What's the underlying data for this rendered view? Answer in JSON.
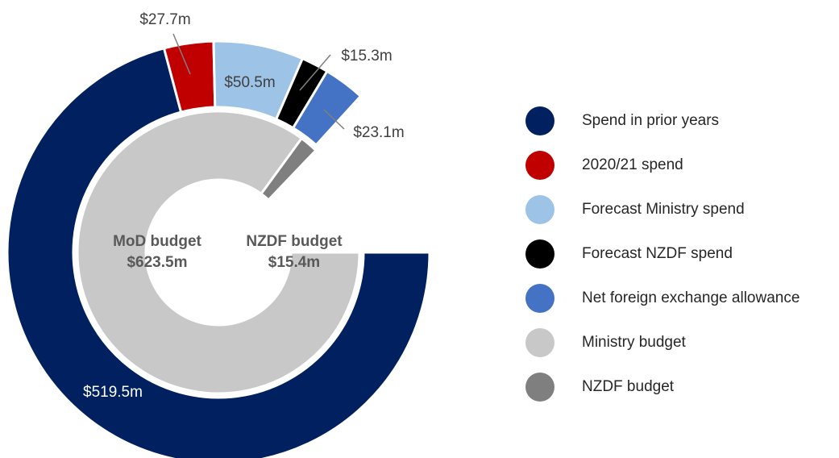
{
  "chart_data": {
    "type": "nested-donut",
    "outer": {
      "categories": [
        "Spend in prior years",
        "2020/21 spend",
        "Forecast Ministry spend",
        "Forecast NZDF spend",
        "Net foreign exchange allowance"
      ],
      "colors": [
        "#002060",
        "#c00000",
        "#9dc3e6",
        "#000000",
        "#4472c4"
      ],
      "values": [
        519.5,
        27.7,
        50.5,
        15.3,
        23.1
      ],
      "value_labels": [
        "$519.5m",
        "$27.7m",
        "$50.5m",
        "$15.3m",
        "$23.1m"
      ]
    },
    "inner": {
      "categories": [
        "Ministry budget",
        "NZDF budget"
      ],
      "labels": [
        "MoD budget",
        "NZDF budget"
      ],
      "colors": [
        "#c8c8c8",
        "#7f7f7f"
      ],
      "values": [
        623.5,
        15.4
      ],
      "value_labels": [
        "$623.5m",
        "$15.4m"
      ]
    }
  }
}
